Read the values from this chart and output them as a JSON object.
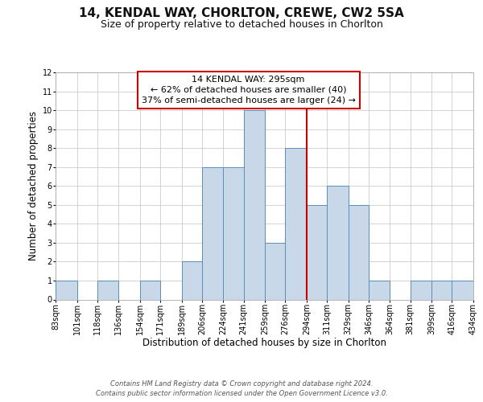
{
  "title": "14, KENDAL WAY, CHORLTON, CREWE, CW2 5SA",
  "subtitle": "Size of property relative to detached houses in Chorlton",
  "xlabel": "Distribution of detached houses by size in Chorlton",
  "ylabel": "Number of detached properties",
  "bin_edges": [
    83,
    101,
    118,
    136,
    154,
    171,
    189,
    206,
    224,
    241,
    259,
    276,
    294,
    311,
    329,
    346,
    364,
    381,
    399,
    416,
    434
  ],
  "bar_heights": [
    1,
    0,
    1,
    0,
    1,
    0,
    2,
    7,
    7,
    10,
    3,
    8,
    5,
    6,
    5,
    1,
    0,
    1,
    1,
    1
  ],
  "bar_color": "#c8d8e8",
  "bar_edge_color": "#5b8db8",
  "red_line_x": 294,
  "ylim": [
    0,
    12
  ],
  "yticks": [
    0,
    1,
    2,
    3,
    4,
    5,
    6,
    7,
    8,
    9,
    10,
    11,
    12
  ],
  "annotation_title": "14 KENDAL WAY: 295sqm",
  "annotation_line1": "← 62% of detached houses are smaller (40)",
  "annotation_line2": "37% of semi-detached houses are larger (24) →",
  "annotation_box_color": "#ffffff",
  "annotation_box_edge_color": "#cc0000",
  "footer_line1": "Contains HM Land Registry data © Crown copyright and database right 2024.",
  "footer_line2": "Contains public sector information licensed under the Open Government Licence v3.0.",
  "background_color": "#ffffff",
  "grid_color": "#cccccc",
  "title_fontsize": 11,
  "subtitle_fontsize": 9,
  "axis_label_fontsize": 8.5,
  "tick_fontsize": 7,
  "annotation_title_fontsize": 8.5,
  "annotation_body_fontsize": 8,
  "footer_fontsize": 6
}
